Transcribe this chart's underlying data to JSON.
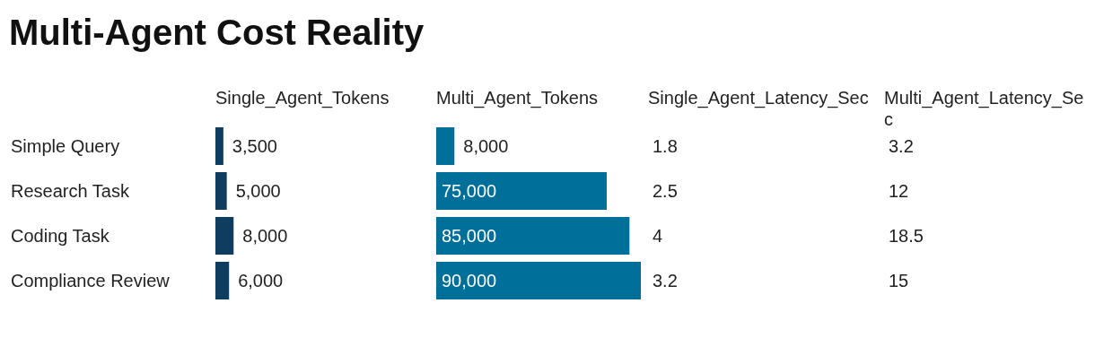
{
  "chart_data": [
    {
      "type": "other",
      "title": "Multi-Agent Cost Reality"
    },
    {
      "type": "bar",
      "orientation": "horizontal",
      "title": "Single_Agent_Tokens",
      "categories": [
        "Simple Query",
        "Research Task",
        "Coding Task",
        "Compliance Review"
      ],
      "values": [
        3500,
        5000,
        8000,
        6000
      ],
      "value_labels": [
        "3,500",
        "5,000",
        "8,000",
        "6,000"
      ],
      "color": "#0f3d5f"
    },
    {
      "type": "bar",
      "orientation": "horizontal",
      "title": "Multi_Agent_Tokens",
      "categories": [
        null,
        null,
        null,
        null
      ],
      "values": [
        8000,
        75000,
        85000,
        90000
      ],
      "value_labels": [
        "8,000",
        "75,000",
        "85,000",
        "90,000"
      ],
      "color": "#00709a"
    },
    {
      "type": "other",
      "title": "Single_Agent_Latency_Sec",
      "annotations": [
        "1.8",
        "2.5",
        "4",
        "3.2"
      ]
    },
    {
      "type": "other",
      "title": "Multi_Agent_Latency_Sec",
      "annotations": [
        "3.2",
        "12",
        "18.5",
        "15"
      ]
    }
  ]
}
